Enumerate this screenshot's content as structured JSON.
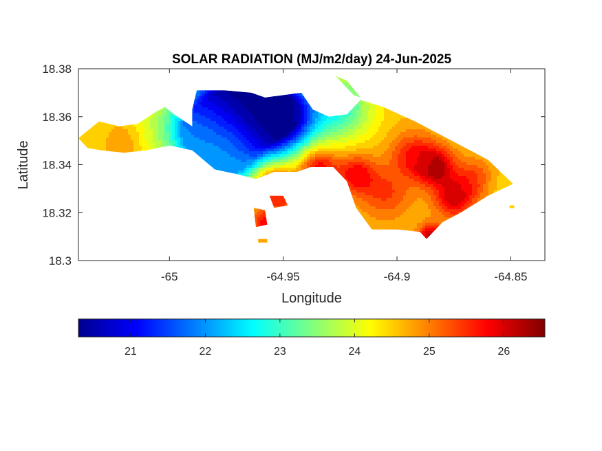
{
  "chart_data": {
    "type": "heatmap",
    "title": "SOLAR RADIATION (MJ/m2/day) 24-Jun-2025",
    "xlabel": "Longitude",
    "ylabel": "Latitude",
    "xlim": [
      -65.04,
      -64.835
    ],
    "ylim": [
      18.3,
      18.38
    ],
    "xticks": [
      "-65",
      "-64.95",
      "-64.9",
      "-64.85"
    ],
    "xtick_values": [
      -65,
      -64.95,
      -64.9,
      -64.85
    ],
    "yticks": [
      "18.38",
      "18.36",
      "18.34",
      "18.32",
      "18.3"
    ],
    "ytick_values": [
      18.38,
      18.36,
      18.34,
      18.32,
      18.3
    ],
    "colormap": "jet",
    "clim": [
      20.3,
      26.55
    ],
    "colorbar_ticks": [
      "21",
      "22",
      "23",
      "24",
      "25",
      "26"
    ],
    "colorbar_tick_values": [
      21,
      22,
      23,
      24,
      25,
      26
    ],
    "grid": false,
    "region_outline": [
      [
        -65.04,
        18.351
      ],
      [
        -65.031,
        18.358
      ],
      [
        -65.022,
        18.356
      ],
      [
        -65.014,
        18.357
      ],
      [
        -65.006,
        18.362
      ],
      [
        -65.002,
        18.364
      ],
      [
        -64.998,
        18.361
      ],
      [
        -64.99,
        18.356
      ],
      [
        -64.99,
        18.363
      ],
      [
        -64.988,
        18.371
      ],
      [
        -64.976,
        18.371
      ],
      [
        -64.964,
        18.37
      ],
      [
        -64.958,
        18.368
      ],
      [
        -64.95,
        18.369
      ],
      [
        -64.942,
        18.37
      ],
      [
        -64.937,
        18.363
      ],
      [
        -64.93,
        18.36
      ],
      [
        -64.922,
        18.361
      ],
      [
        -64.916,
        18.367
      ],
      [
        -64.906,
        18.364
      ],
      [
        -64.892,
        18.358
      ],
      [
        -64.878,
        18.351
      ],
      [
        -64.86,
        18.342
      ],
      [
        -64.849,
        18.332
      ],
      [
        -64.86,
        18.327
      ],
      [
        -64.872,
        18.32
      ],
      [
        -64.88,
        18.316
      ],
      [
        -64.887,
        18.309
      ],
      [
        -64.89,
        18.312
      ],
      [
        -64.9,
        18.313
      ],
      [
        -64.911,
        18.313
      ],
      [
        -64.918,
        18.322
      ],
      [
        -64.922,
        18.333
      ],
      [
        -64.928,
        18.339
      ],
      [
        -64.938,
        18.339
      ],
      [
        -64.944,
        18.337
      ],
      [
        -64.954,
        18.337
      ],
      [
        -64.962,
        18.334
      ],
      [
        -64.97,
        18.336
      ],
      [
        -64.98,
        18.338
      ],
      [
        -64.99,
        18.346
      ],
      [
        -65.0,
        18.348
      ],
      [
        -65.01,
        18.346
      ],
      [
        -65.02,
        18.345
      ],
      [
        -65.03,
        18.346
      ],
      [
        -65.036,
        18.347
      ]
    ],
    "islets": [
      [
        [
          -64.956,
          18.327
        ],
        [
          -64.95,
          18.327
        ],
        [
          -64.948,
          18.323
        ],
        [
          -64.954,
          18.322
        ]
      ],
      [
        [
          -64.963,
          18.322
        ],
        [
          -64.958,
          18.321
        ],
        [
          -64.957,
          18.315
        ],
        [
          -64.962,
          18.314
        ]
      ],
      [
        [
          -64.927,
          18.377
        ],
        [
          -64.922,
          18.375
        ],
        [
          -64.916,
          18.368
        ],
        [
          -64.919,
          18.369
        ]
      ],
      [
        [
          -64.8505,
          18.323
        ],
        [
          -64.8485,
          18.323
        ],
        [
          -64.8485,
          18.3218
        ],
        [
          -64.8505,
          18.3218
        ]
      ],
      [
        [
          -64.961,
          18.309
        ],
        [
          -64.957,
          18.309
        ],
        [
          -64.957,
          18.3075
        ],
        [
          -64.961,
          18.3075
        ]
      ]
    ],
    "value_field_peaks": [
      {
        "lon": -64.97,
        "lat": 18.366,
        "value": 20.4,
        "radius": 0.016
      },
      {
        "lon": -64.952,
        "lat": 18.36,
        "value": 20.6,
        "radius": 0.011
      },
      {
        "lon": -64.985,
        "lat": 18.352,
        "value": 22.6,
        "radius": 0.012
      },
      {
        "lon": -64.925,
        "lat": 18.364,
        "value": 23.0,
        "radius": 0.01
      },
      {
        "lon": -64.975,
        "lat": 18.343,
        "value": 22.6,
        "radius": 0.01
      },
      {
        "lon": -64.955,
        "lat": 18.333,
        "value": 26.0,
        "radius": 0.006
      },
      {
        "lon": -64.935,
        "lat": 18.339,
        "value": 26.0,
        "radius": 0.006
      },
      {
        "lon": -64.918,
        "lat": 18.336,
        "value": 25.8,
        "radius": 0.006
      },
      {
        "lon": -64.893,
        "lat": 18.344,
        "value": 25.6,
        "radius": 0.007
      },
      {
        "lon": -64.883,
        "lat": 18.339,
        "value": 26.2,
        "radius": 0.006
      },
      {
        "lon": -64.875,
        "lat": 18.326,
        "value": 26.0,
        "radius": 0.006
      },
      {
        "lon": -64.905,
        "lat": 18.328,
        "value": 25.4,
        "radius": 0.008
      },
      {
        "lon": -64.866,
        "lat": 18.334,
        "value": 25.4,
        "radius": 0.006
      },
      {
        "lon": -64.855,
        "lat": 18.332,
        "value": 24.4,
        "radius": 0.005
      },
      {
        "lon": -64.885,
        "lat": 18.31,
        "value": 26.2,
        "radius": 0.004
      },
      {
        "lon": -64.958,
        "lat": 18.316,
        "value": 25.8,
        "radius": 0.004
      },
      {
        "lon": -64.951,
        "lat": 18.325,
        "value": 25.3,
        "radius": 0.004
      },
      {
        "lon": -65.01,
        "lat": 18.355,
        "value": 24.3,
        "radius": 0.007
      },
      {
        "lon": -65.03,
        "lat": 18.353,
        "value": 24.5,
        "radius": 0.007
      },
      {
        "lon": -65.02,
        "lat": 18.35,
        "value": 25.0,
        "radius": 0.005
      }
    ],
    "value_field_base": 24.6
  }
}
